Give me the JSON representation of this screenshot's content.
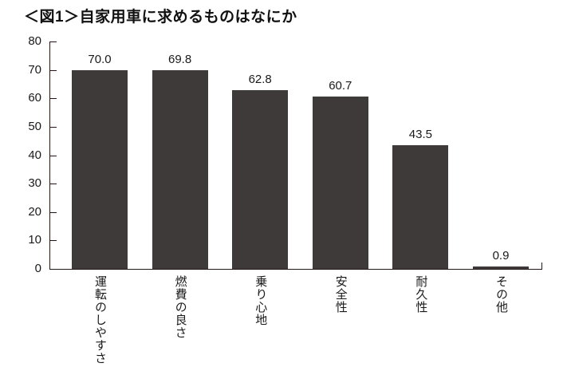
{
  "colors": {
    "bar": "#3e3a39",
    "axis": "#231815",
    "text": "#1a1a1a",
    "background": "#ffffff"
  },
  "chart_data": {
    "type": "bar",
    "title": "＜図1＞自家用車に求めるものはなにか",
    "categories": [
      "運転のしやすさ",
      "燃費の良さ",
      "乗り心地",
      "安全性",
      "耐久性",
      "その他"
    ],
    "values": [
      70.0,
      69.8,
      62.8,
      60.7,
      43.5,
      0.9
    ],
    "value_labels": [
      "70.0",
      "69.8",
      "62.8",
      "60.7",
      "43.5",
      "0.9"
    ],
    "xlabel": "",
    "ylabel": "",
    "ylim": [
      0,
      80
    ],
    "yticks": [
      0,
      10,
      20,
      30,
      40,
      50,
      60,
      70,
      80
    ],
    "grid": false,
    "legend": "none",
    "bar_color": "#3e3a39",
    "category_label_orientation": "vertical"
  }
}
